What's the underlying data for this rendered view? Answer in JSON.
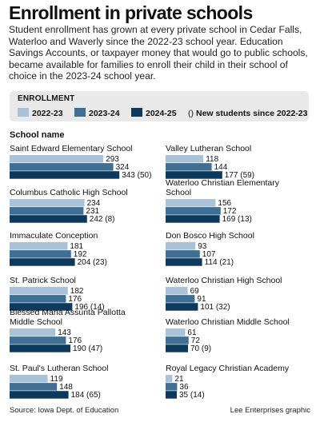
{
  "title": "Enrollment in private schools",
  "subtitle": "Student enrollment has grown at every private school in Cedar Falls, Waterloo and Waverly since the 2022-23 school year. Education Savings Accounts, or taxpayer money that would go to public schools, became available for families to enroll their child in their school of choice in the 2023-24 school year.",
  "legend": {
    "title": "ENROLLMENT",
    "items": [
      {
        "label": "2022-23",
        "color": "#a9c2d8"
      },
      {
        "label": "2023-24",
        "color": "#3f6f95"
      },
      {
        "label": "2024-25",
        "color": "#0d3a5c"
      }
    ],
    "note_symbol": "()",
    "note_label": "New students since 2022-23"
  },
  "column_header": "School name",
  "source": "Source: Iowa Dept. of Education",
  "credit": "Lee Enterprises graphic",
  "chart_data": {
    "type": "bar",
    "orientation": "horizontal",
    "series": [
      {
        "name": "2022-23",
        "color": "#a9c2d8"
      },
      {
        "name": "2023-24",
        "color": "#3f6f95"
      },
      {
        "name": "2024-25",
        "color": "#0d3a5c"
      }
    ],
    "schools": [
      {
        "name": "Saint Edward Elementary School",
        "values": [
          293,
          324,
          343
        ],
        "new": 50
      },
      {
        "name": "Columbus Catholic High School",
        "values": [
          234,
          231,
          242
        ],
        "new": 8
      },
      {
        "name": "Immaculate Conception",
        "values": [
          181,
          192,
          204
        ],
        "new": 23
      },
      {
        "name": "St. Patrick School",
        "values": [
          182,
          176,
          196
        ],
        "new": 14
      },
      {
        "name": "Blessed Maria Assunta Pallotta Middle School",
        "values": [
          143,
          176,
          190
        ],
        "new": 47
      },
      {
        "name": "St. Paul's Lutheran School",
        "values": [
          119,
          148,
          184
        ],
        "new": 65
      },
      {
        "name": "Valley Lutheran School",
        "values": [
          118,
          144,
          177
        ],
        "new": 59
      },
      {
        "name": "Waterloo Christian Elementary School",
        "values": [
          156,
          172,
          169
        ],
        "new": 13
      },
      {
        "name": "Don Bosco High School",
        "values": [
          93,
          107,
          114
        ],
        "new": 21
      },
      {
        "name": "Waterloo Christian High School",
        "values": [
          69,
          91,
          101
        ],
        "new": 32
      },
      {
        "name": "Waterloo Christian Middle School",
        "values": [
          61,
          72,
          70
        ],
        "new": 9
      },
      {
        "name": "Royal Legacy Christian Academy",
        "values": [
          21,
          36,
          35
        ],
        "new": 14
      }
    ]
  }
}
